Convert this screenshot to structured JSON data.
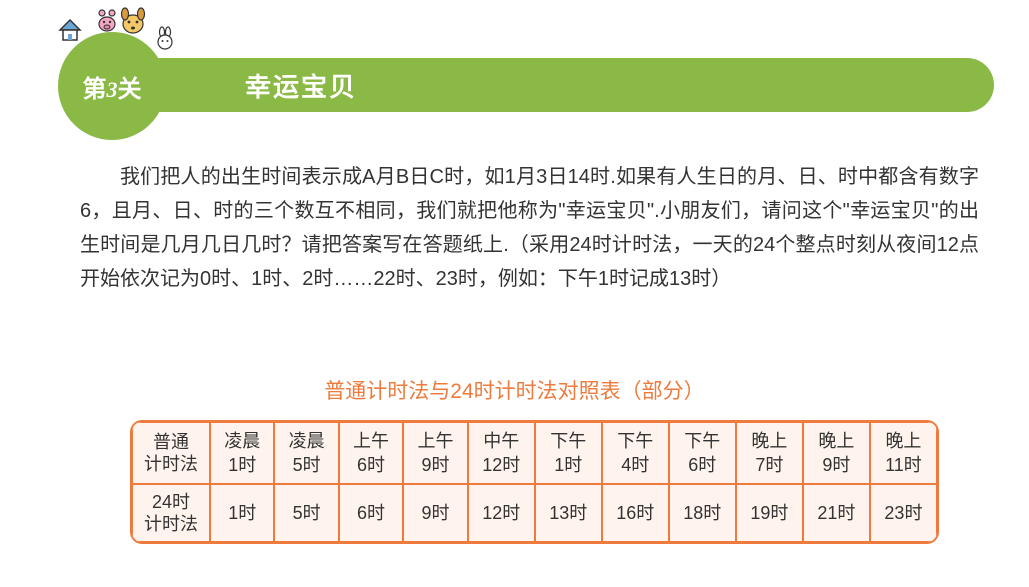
{
  "header": {
    "badge_prefix": "第",
    "badge_num": "3",
    "badge_suffix": "关",
    "title": "幸运宝贝",
    "bar_color": "#8ab946",
    "circle_color": "#8ab946",
    "title_color": "#ffffff"
  },
  "body": {
    "paragraph": "我们把人的出生时间表示成A月B日C时，如1月3日14时.如果有人生日的月、日、时中都含有数字6，且月、日、时的三个数互不相同，我们就把他称为\"幸运宝贝\".小朋友们，请问这个\"幸运宝贝\"的出生时间是几月几日几时？请把答案写在答题纸上.（采用24时计时法，一天的24个整点时刻从夜间12点开始依次记为0时、1时、2时……22时、23时，例如：下午1时记成13时）",
    "text_color": "#333333",
    "font_size": 20,
    "line_height": 34
  },
  "table": {
    "title": "普通计时法与24时计时法对照表（部分）",
    "title_color": "#ee7b3d",
    "border_color": "#ee7b3d",
    "cell_bg": "#fff4ed",
    "row_labels": [
      "普通计时法",
      "24时计时法"
    ],
    "columns": [
      {
        "top": "凌晨1时",
        "bottom": "1时"
      },
      {
        "top": "凌晨5时",
        "bottom": "5时"
      },
      {
        "top": "上午6时",
        "bottom": "6时"
      },
      {
        "top": "上午9时",
        "bottom": "9时"
      },
      {
        "top": "中午12时",
        "bottom": "12时"
      },
      {
        "top": "下午1时",
        "bottom": "13时"
      },
      {
        "top": "下午4时",
        "bottom": "16时"
      },
      {
        "top": "下午6时",
        "bottom": "18时"
      },
      {
        "top": "晚上7时",
        "bottom": "19时"
      },
      {
        "top": "晚上9时",
        "bottom": "21时"
      },
      {
        "top": "晚上11时",
        "bottom": "23时"
      }
    ]
  },
  "decorations": {
    "house_roof": "#6aa6d6",
    "house_wall": "#ffffff",
    "house_stroke": "#333333",
    "pig_color": "#f4a6c4",
    "dog_color": "#f4c869",
    "rabbit_color": "#ffffff"
  }
}
